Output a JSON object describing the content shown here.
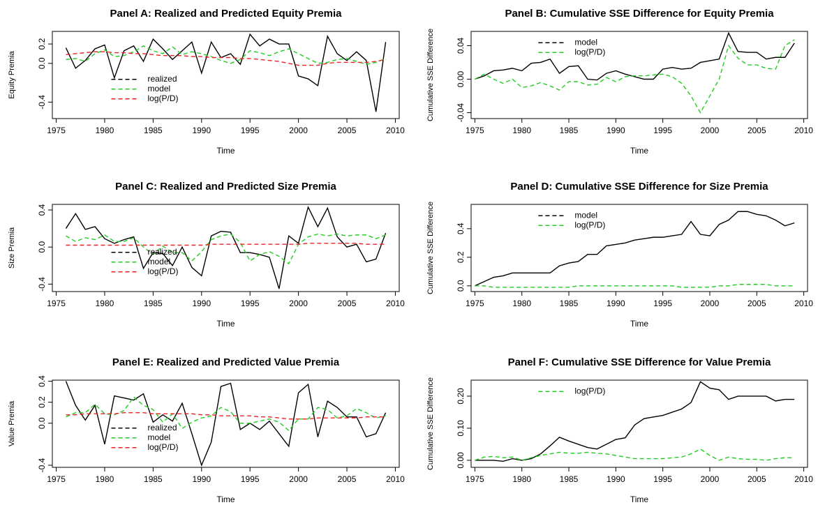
{
  "chart_data": [
    {
      "type": "line",
      "title": "Panel A: Realized and Predicted Equity Premia",
      "x_label": "Time",
      "y_label": "Equity Premia",
      "x": [
        1976,
        1977,
        1978,
        1979,
        1980,
        1981,
        1982,
        1983,
        1984,
        1985,
        1986,
        1987,
        1988,
        1989,
        1990,
        1991,
        1992,
        1993,
        1994,
        1995,
        1996,
        1997,
        1998,
        1999,
        2000,
        2001,
        2002,
        2003,
        2004,
        2005,
        2006,
        2007,
        2008,
        2009
      ],
      "xlim": [
        1974.6,
        2010.4
      ],
      "xticks": [
        1975,
        1980,
        1985,
        1990,
        1995,
        2000,
        2005,
        2010
      ],
      "ylim": [
        -0.57,
        0.33
      ],
      "yticks": [
        -0.4,
        {
          "value": 0,
          "label": "0.0"
        },
        0.2
      ],
      "legend": "lower-left",
      "series": [
        {
          "name": "realized",
          "color": "#000000",
          "dashed": false,
          "values": [
            0.16,
            -0.05,
            0.03,
            0.15,
            0.19,
            -0.15,
            0.13,
            0.18,
            0.02,
            0.25,
            0.15,
            0.04,
            0.13,
            0.22,
            -0.1,
            0.22,
            0.06,
            0.1,
            -0.01,
            0.3,
            0.18,
            0.25,
            0.2,
            0.2,
            -0.13,
            -0.16,
            -0.23,
            0.28,
            0.1,
            0.03,
            0.12,
            0.03,
            -0.5,
            0.22
          ]
        },
        {
          "name": "model",
          "color": "#22cc22",
          "dashed": true,
          "values": [
            0.04,
            0.05,
            0.02,
            0.1,
            0.14,
            0.07,
            0.08,
            0.12,
            0.18,
            0.13,
            0.1,
            0.17,
            0.09,
            0.12,
            0.1,
            0.07,
            0.03,
            0.0,
            0.04,
            0.13,
            0.11,
            0.08,
            0.12,
            0.15,
            0.1,
            0.05,
            0.0,
            0.01,
            0.04,
            0.05,
            0.02,
            -0.01,
            0.01,
            0.05
          ]
        },
        {
          "name": "log(P/D)",
          "color": "#ee2222",
          "dashed": true,
          "values": [
            0.09,
            0.1,
            0.11,
            0.12,
            0.12,
            0.11,
            0.11,
            0.1,
            0.1,
            0.09,
            0.08,
            0.08,
            0.08,
            0.07,
            0.07,
            0.06,
            0.06,
            0.06,
            0.05,
            0.05,
            0.04,
            0.03,
            0.02,
            0.0,
            -0.02,
            -0.02,
            -0.02,
            0.0,
            0.01,
            0.01,
            0.01,
            0.01,
            0.02,
            0.04
          ]
        }
      ]
    },
    {
      "type": "line",
      "title": "Panel B: Cumulative SSE Difference for Equity Premia",
      "x_label": "Time",
      "y_label": "Cumulative SSE Difference",
      "x": [
        1975,
        1976,
        1977,
        1978,
        1979,
        1980,
        1981,
        1982,
        1983,
        1984,
        1985,
        1986,
        1987,
        1988,
        1989,
        1990,
        1991,
        1992,
        1993,
        1994,
        1995,
        1996,
        1997,
        1998,
        1999,
        2000,
        2001,
        2002,
        2003,
        2004,
        2005,
        2006,
        2007,
        2008,
        2009
      ],
      "xlim": [
        1974.6,
        2010.4
      ],
      "xticks": [
        1975,
        1980,
        1985,
        1990,
        1995,
        2000,
        2005,
        2010
      ],
      "ylim": [
        -0.047,
        0.057
      ],
      "yticks": [
        -0.04,
        {
          "value": 0,
          "label": "0.00"
        },
        0.04
      ],
      "legend": "top-left",
      "series": [
        {
          "name": "model",
          "color": "#000000",
          "dashed": false,
          "values": [
            0.0,
            0.004,
            0.01,
            0.011,
            0.013,
            0.01,
            0.019,
            0.02,
            0.024,
            0.007,
            0.015,
            0.016,
            0.0,
            -0.001,
            0.007,
            0.01,
            0.006,
            0.003,
            0.0,
            0.0,
            0.012,
            0.014,
            0.012,
            0.013,
            0.02,
            0.022,
            0.024,
            0.055,
            0.033,
            0.032,
            0.032,
            0.024,
            0.026,
            0.026,
            0.043
          ]
        },
        {
          "name": "log(P/D)",
          "color": "#22cc22",
          "dashed": true,
          "values": [
            0.0,
            0.006,
            0.0,
            -0.005,
            0.0,
            -0.01,
            -0.008,
            -0.004,
            -0.008,
            -0.013,
            -0.003,
            -0.003,
            -0.007,
            -0.006,
            0.002,
            -0.003,
            0.003,
            0.004,
            0.004,
            0.005,
            0.006,
            0.003,
            -0.005,
            -0.02,
            -0.04,
            -0.02,
            0.0,
            0.04,
            0.025,
            0.017,
            0.017,
            0.013,
            0.012,
            0.04,
            0.047
          ]
        }
      ]
    },
    {
      "type": "line",
      "title": "Panel C: Realized and Predicted Size Premia",
      "x_label": "Time",
      "y_label": "Size Premia",
      "x": [
        1976,
        1977,
        1978,
        1979,
        1980,
        1981,
        1982,
        1983,
        1984,
        1985,
        1986,
        1987,
        1988,
        1989,
        1990,
        1991,
        1992,
        1993,
        1994,
        1995,
        1996,
        1997,
        1998,
        1999,
        2000,
        2001,
        2002,
        2003,
        2004,
        2005,
        2006,
        2007,
        2008,
        2009
      ],
      "xlim": [
        1974.6,
        2010.4
      ],
      "xticks": [
        1975,
        1980,
        1985,
        1990,
        1995,
        2000,
        2005,
        2010
      ],
      "ylim": [
        -0.48,
        0.46
      ],
      "yticks": [
        -0.4,
        {
          "value": 0,
          "label": "0.0"
        },
        0.4
      ],
      "legend": "lower-left",
      "series": [
        {
          "name": "realized",
          "color": "#000000",
          "dashed": false,
          "values": [
            0.2,
            0.36,
            0.19,
            0.22,
            0.09,
            0.04,
            0.08,
            0.11,
            -0.23,
            -0.06,
            -0.07,
            -0.2,
            0.0,
            -0.22,
            -0.31,
            0.12,
            0.17,
            0.16,
            -0.06,
            -0.06,
            -0.08,
            -0.11,
            -0.45,
            0.12,
            0.04,
            0.43,
            0.22,
            0.42,
            0.11,
            0.0,
            0.03,
            -0.16,
            -0.13,
            0.15
          ]
        },
        {
          "name": "model",
          "color": "#22cc22",
          "dashed": true,
          "values": [
            0.12,
            0.06,
            0.1,
            0.08,
            0.13,
            0.06,
            0.06,
            0.1,
            0.0,
            -0.08,
            0.01,
            -0.06,
            -0.06,
            -0.15,
            -0.05,
            0.08,
            0.12,
            0.14,
            0.05,
            -0.15,
            -0.08,
            -0.05,
            -0.1,
            -0.18,
            0.03,
            0.11,
            0.14,
            0.12,
            0.14,
            0.12,
            0.13,
            0.13,
            0.09,
            0.13
          ]
        },
        {
          "name": "log(P/D)",
          "color": "#ee2222",
          "dashed": true,
          "values": [
            0.02,
            0.02,
            0.02,
            0.02,
            0.02,
            0.02,
            0.02,
            0.02,
            0.02,
            0.02,
            0.02,
            0.02,
            0.02,
            0.02,
            0.02,
            0.03,
            0.03,
            0.03,
            0.03,
            0.03,
            0.03,
            0.03,
            0.03,
            0.03,
            0.03,
            0.04,
            0.04,
            0.04,
            0.04,
            0.04,
            0.04,
            0.03,
            0.03,
            0.03
          ]
        }
      ]
    },
    {
      "type": "line",
      "title": "Panel D: Cumulative SSE Difference for Size Premia",
      "x_label": "Time",
      "y_label": "Cumulative SSE Difference",
      "x": [
        1975,
        1976,
        1977,
        1978,
        1979,
        1980,
        1981,
        1982,
        1983,
        1984,
        1985,
        1986,
        1987,
        1988,
        1989,
        1990,
        1991,
        1992,
        1993,
        1994,
        1995,
        1996,
        1997,
        1998,
        1999,
        2000,
        2001,
        2002,
        2003,
        2004,
        2005,
        2006,
        2007,
        2008,
        2009
      ],
      "xlim": [
        1974.6,
        2010.4
      ],
      "xticks": [
        1975,
        1980,
        1985,
        1990,
        1995,
        2000,
        2005,
        2010
      ],
      "ylim": [
        -0.04,
        0.57
      ],
      "yticks": [
        {
          "value": 0,
          "label": "0.0"
        },
        0.2,
        0.4
      ],
      "legend": "top-left",
      "series": [
        {
          "name": "model",
          "color": "#000000",
          "dashed": false,
          "values": [
            0.0,
            0.03,
            0.06,
            0.07,
            0.09,
            0.09,
            0.09,
            0.09,
            0.09,
            0.14,
            0.16,
            0.17,
            0.22,
            0.22,
            0.28,
            0.29,
            0.3,
            0.32,
            0.33,
            0.34,
            0.34,
            0.35,
            0.36,
            0.45,
            0.36,
            0.35,
            0.43,
            0.46,
            0.52,
            0.52,
            0.5,
            0.49,
            0.46,
            0.42,
            0.44
          ]
        },
        {
          "name": "log(P/D)",
          "color": "#22cc22",
          "dashed": true,
          "values": [
            0.0,
            0.0,
            -0.01,
            -0.01,
            -0.01,
            -0.01,
            -0.01,
            -0.01,
            -0.01,
            -0.01,
            -0.01,
            0.0,
            0.0,
            0.0,
            0.0,
            0.0,
            0.0,
            0.0,
            0.0,
            0.0,
            0.0,
            0.0,
            -0.01,
            -0.01,
            -0.01,
            -0.01,
            0.0,
            0.0,
            0.01,
            0.01,
            0.01,
            0.01,
            0.0,
            0.0,
            0.0
          ]
        }
      ]
    },
    {
      "type": "line",
      "title": "Panel E: Realized and Predicted Value Premia",
      "x_label": "Time",
      "y_label": "Value Premia",
      "x": [
        1976,
        1977,
        1978,
        1979,
        1980,
        1981,
        1982,
        1983,
        1984,
        1985,
        1986,
        1987,
        1988,
        1989,
        1990,
        1991,
        1992,
        1993,
        1994,
        1995,
        1996,
        1997,
        1998,
        1999,
        2000,
        2001,
        2002,
        2003,
        2004,
        2005,
        2006,
        2007,
        2008,
        2009
      ],
      "xlim": [
        1974.6,
        2010.4
      ],
      "xticks": [
        1975,
        1980,
        1985,
        1990,
        1995,
        2000,
        2005,
        2010
      ],
      "ylim": [
        -0.42,
        0.41
      ],
      "yticks": [
        -0.4,
        {
          "value": 0,
          "label": "0.0"
        },
        0.2,
        0.4
      ],
      "legend": "lower-left",
      "series": [
        {
          "name": "realized",
          "color": "#000000",
          "dashed": false,
          "values": [
            0.4,
            0.17,
            0.03,
            0.17,
            -0.2,
            0.26,
            0.24,
            0.22,
            0.28,
            0.01,
            0.08,
            0.02,
            0.19,
            -0.1,
            -0.4,
            -0.18,
            0.35,
            0.38,
            -0.06,
            0.0,
            -0.06,
            0.02,
            -0.1,
            -0.22,
            0.29,
            0.37,
            -0.13,
            0.21,
            0.15,
            0.06,
            0.06,
            -0.13,
            -0.1,
            0.1
          ]
        },
        {
          "name": "model",
          "color": "#22cc22",
          "dashed": true,
          "values": [
            0.06,
            0.1,
            0.1,
            0.18,
            0.09,
            0.08,
            0.12,
            0.25,
            0.17,
            0.13,
            0.01,
            0.09,
            -0.05,
            0.01,
            0.05,
            0.07,
            0.15,
            0.11,
            0.0,
            0.0,
            0.02,
            0.04,
            0.01,
            -0.07,
            0.04,
            0.04,
            0.15,
            0.13,
            0.05,
            0.07,
            0.14,
            0.1,
            0.05,
            0.07
          ]
        },
        {
          "name": "log(P/D)",
          "color": "#ee2222",
          "dashed": true,
          "values": [
            0.08,
            0.08,
            0.09,
            0.09,
            0.09,
            0.09,
            0.1,
            0.1,
            0.1,
            0.09,
            0.09,
            0.09,
            0.09,
            0.09,
            0.08,
            0.08,
            0.07,
            0.07,
            0.07,
            0.07,
            0.06,
            0.06,
            0.05,
            0.04,
            0.04,
            0.04,
            0.05,
            0.05,
            0.05,
            0.05,
            0.05,
            0.06,
            0.06,
            0.06
          ]
        }
      ]
    },
    {
      "type": "line",
      "title": "Panel F: Cumulative SSE Difference for Value Premia",
      "x_label": "Time",
      "y_label": "Cumulative SSE Difference",
      "x": [
        1975,
        1976,
        1977,
        1978,
        1979,
        1980,
        1981,
        1982,
        1983,
        1984,
        1985,
        1986,
        1987,
        1988,
        1989,
        1990,
        1991,
        1992,
        1993,
        1994,
        1995,
        1996,
        1997,
        1998,
        1999,
        2000,
        2001,
        2002,
        2003,
        2004,
        2005,
        2006,
        2007,
        2008,
        2009
      ],
      "xlim": [
        1974.6,
        2010.4
      ],
      "xticks": [
        1975,
        1980,
        1985,
        1990,
        1995,
        2000,
        2005,
        2010
      ],
      "ylim": [
        -0.022,
        0.25
      ],
      "yticks": [
        {
          "value": 0,
          "label": "0.00"
        },
        {
          "value": 0.1,
          "label": "0.10"
        },
        {
          "value": 0.2,
          "label": "0.20"
        }
      ],
      "legend": "top-left",
      "series": [
        {
          "color": "#000000",
          "dashed": false,
          "values": [
            0.0,
            0.0,
            0.0,
            -0.003,
            0.005,
            0.0,
            0.005,
            0.02,
            0.045,
            0.072,
            0.06,
            0.05,
            0.04,
            0.035,
            0.05,
            0.065,
            0.07,
            0.11,
            0.13,
            0.135,
            0.14,
            0.15,
            0.16,
            0.18,
            0.245,
            0.225,
            0.22,
            0.19,
            0.2,
            0.2,
            0.2,
            0.2,
            0.185,
            0.19,
            0.19
          ]
        },
        {
          "name": "log(P/D)",
          "color": "#22cc22",
          "dashed": true,
          "values": [
            0.0,
            0.01,
            0.012,
            0.008,
            0.01,
            0.0,
            0.008,
            0.015,
            0.02,
            0.025,
            0.022,
            0.022,
            0.025,
            0.022,
            0.02,
            0.015,
            0.01,
            0.005,
            0.005,
            0.005,
            0.005,
            0.008,
            0.01,
            0.02,
            0.035,
            0.015,
            0.0,
            0.01,
            0.005,
            0.003,
            0.003,
            0.0,
            0.005,
            0.008,
            0.008
          ]
        }
      ]
    }
  ]
}
